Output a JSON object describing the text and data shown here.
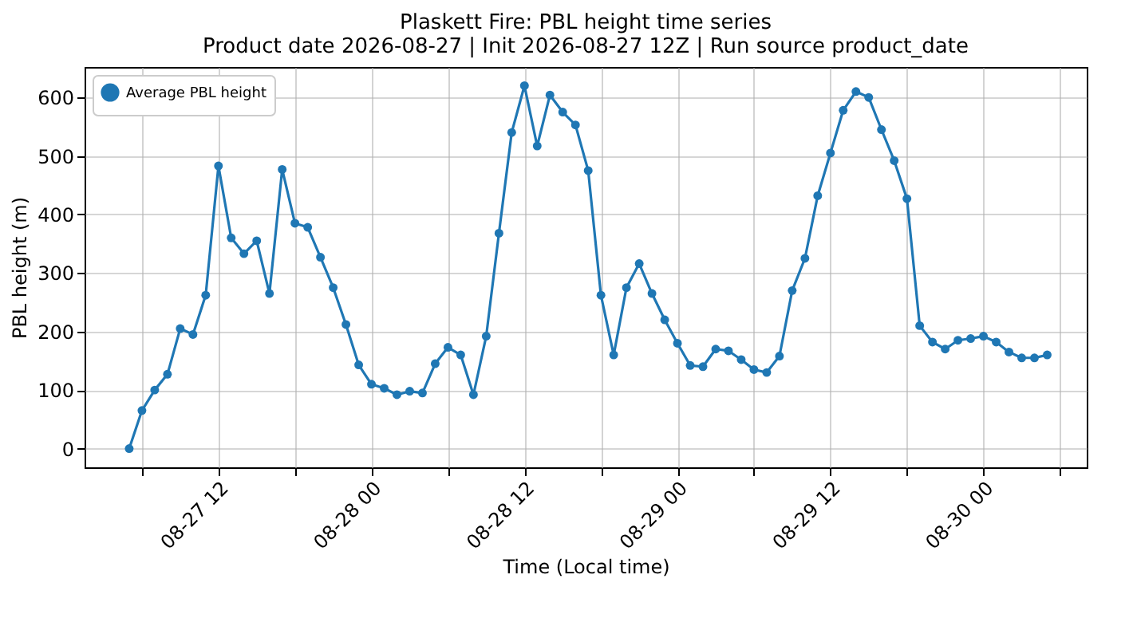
{
  "chart_data": {
    "type": "line",
    "title": "Plaskett Fire: PBL height time series",
    "subtitle": "Product date 2026-08-27 | Init 2026-08-27 12Z | Run source product_date",
    "xlabel": "Time (Local time)",
    "ylabel": "PBL height (m)",
    "x": [
      "2026-08-27T05:00",
      "2026-08-27T06:00",
      "2026-08-27T07:00",
      "2026-08-27T08:00",
      "2026-08-27T09:00",
      "2026-08-27T10:00",
      "2026-08-27T11:00",
      "2026-08-27T12:00",
      "2026-08-27T13:00",
      "2026-08-27T14:00",
      "2026-08-27T15:00",
      "2026-08-27T16:00",
      "2026-08-27T17:00",
      "2026-08-27T18:00",
      "2026-08-27T19:00",
      "2026-08-27T20:00",
      "2026-08-27T21:00",
      "2026-08-27T22:00",
      "2026-08-27T23:00",
      "2026-08-28T00:00",
      "2026-08-28T01:00",
      "2026-08-28T02:00",
      "2026-08-28T03:00",
      "2026-08-28T04:00",
      "2026-08-28T05:00",
      "2026-08-28T06:00",
      "2026-08-28T07:00",
      "2026-08-28T08:00",
      "2026-08-28T09:00",
      "2026-08-28T10:00",
      "2026-08-28T11:00",
      "2026-08-28T12:00",
      "2026-08-28T13:00",
      "2026-08-28T14:00",
      "2026-08-28T15:00",
      "2026-08-28T16:00",
      "2026-08-28T17:00",
      "2026-08-28T18:00",
      "2026-08-28T19:00",
      "2026-08-28T20:00",
      "2026-08-28T21:00",
      "2026-08-28T22:00",
      "2026-08-28T23:00",
      "2026-08-29T00:00",
      "2026-08-29T01:00",
      "2026-08-29T02:00",
      "2026-08-29T03:00",
      "2026-08-29T04:00",
      "2026-08-29T05:00",
      "2026-08-29T06:00",
      "2026-08-29T07:00",
      "2026-08-29T08:00",
      "2026-08-29T09:00",
      "2026-08-29T10:00",
      "2026-08-29T11:00",
      "2026-08-29T12:00",
      "2026-08-29T13:00",
      "2026-08-29T14:00",
      "2026-08-29T15:00",
      "2026-08-29T16:00",
      "2026-08-29T17:00",
      "2026-08-29T18:00",
      "2026-08-29T19:00",
      "2026-08-29T20:00",
      "2026-08-29T21:00",
      "2026-08-29T22:00",
      "2026-08-29T23:00",
      "2026-08-30T00:00",
      "2026-08-30T01:00",
      "2026-08-30T02:00",
      "2026-08-30T03:00",
      "2026-08-30T04:00",
      "2026-08-30T05:00"
    ],
    "series": [
      {
        "name": "Average PBL height",
        "color": "#1f77b4",
        "values": [
          0,
          65,
          100,
          127,
          205,
          195,
          262,
          483,
          360,
          333,
          355,
          265,
          477,
          385,
          378,
          327,
          275,
          212,
          143,
          110,
          103,
          92,
          98,
          95,
          145,
          173,
          160,
          92,
          192,
          368,
          540,
          620,
          517,
          604,
          575,
          553,
          475,
          262,
          160,
          275,
          316,
          265,
          220,
          180,
          142,
          140,
          170,
          167,
          152,
          135,
          130,
          158,
          270,
          325,
          432,
          505,
          578,
          610,
          600,
          545,
          492,
          427,
          210,
          182,
          170,
          185,
          188,
          192,
          182,
          165,
          155,
          155,
          160
        ]
      }
    ],
    "xlim": [
      "2026-08-27T01:30",
      "2026-08-30T08:06"
    ],
    "xticks": [
      {
        "value": "2026-08-27T06:00",
        "label": null
      },
      {
        "value": "2026-08-27T12:00",
        "label": "08-27 12"
      },
      {
        "value": "2026-08-27T18:00",
        "label": null
      },
      {
        "value": "2026-08-28T00:00",
        "label": "08-28 00"
      },
      {
        "value": "2026-08-28T06:00",
        "label": null
      },
      {
        "value": "2026-08-28T12:00",
        "label": "08-28 12"
      },
      {
        "value": "2026-08-28T18:00",
        "label": null
      },
      {
        "value": "2026-08-29T00:00",
        "label": "08-29 00"
      },
      {
        "value": "2026-08-29T06:00",
        "label": null
      },
      {
        "value": "2026-08-29T12:00",
        "label": "08-29 12"
      },
      {
        "value": "2026-08-29T18:00",
        "label": null
      },
      {
        "value": "2026-08-30T00:00",
        "label": "08-30 00"
      },
      {
        "value": "2026-08-30T06:00",
        "label": null
      }
    ],
    "ylim": [
      -32,
      652
    ],
    "yticks": [
      0,
      100,
      200,
      300,
      400,
      500,
      600
    ],
    "grid": true,
    "legend": "top left",
    "marker": "circle",
    "line_style": "solid"
  }
}
